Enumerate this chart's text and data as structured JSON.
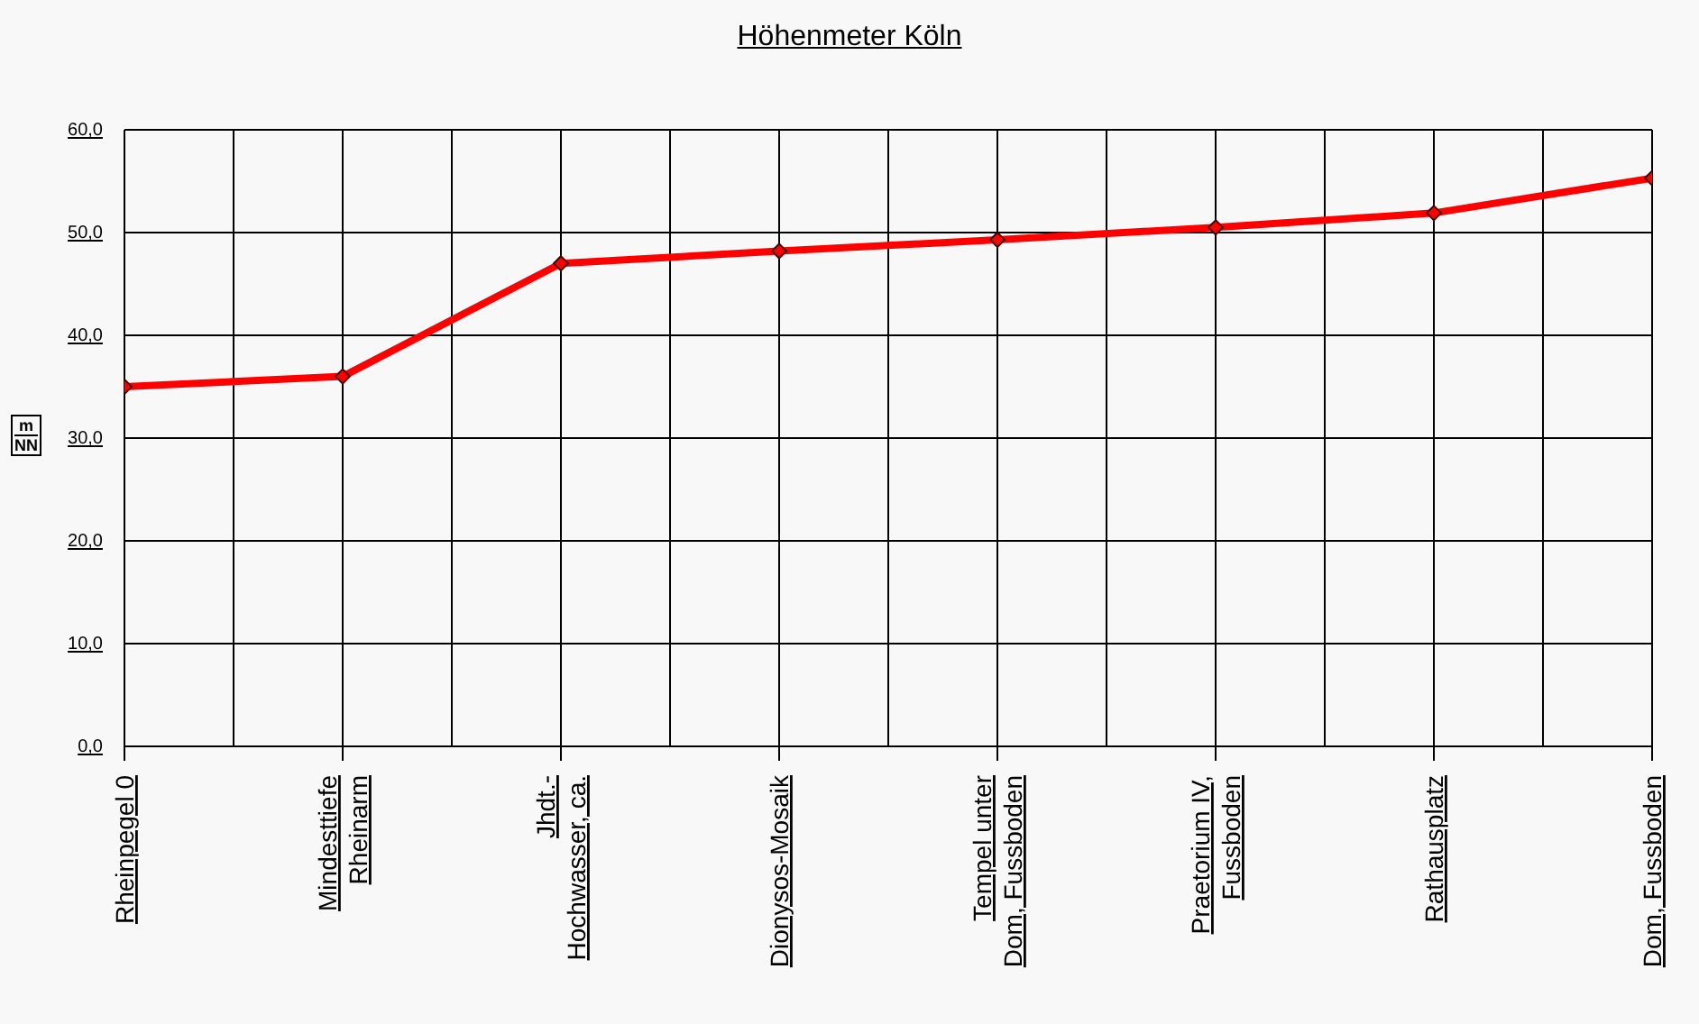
{
  "chart_data": {
    "type": "line",
    "title": "Höhenmeter Köln",
    "ylabel": "m NN",
    "categories": [
      "Rheinpegel 0",
      "Mindesttiefe\nRheinarm",
      "Jhdt.-\nHochwasser, ca.",
      "Dionysos-Mosaik",
      "Tempel unter\nDom, Fussboden",
      "Praetorium IV,\nFussboden",
      "Rathausplatz",
      "Dom, Fussboden"
    ],
    "series": [
      {
        "color": "#ff0000",
        "values": [
          35,
          36,
          47,
          48.2,
          49.3,
          50.5,
          51.9,
          55.3
        ]
      }
    ],
    "ylim": [
      0,
      60
    ],
    "yticks": [
      {
        "value": 0,
        "label": "0,0"
      },
      {
        "value": 10,
        "label": "10,0"
      },
      {
        "value": 20,
        "label": "20,0"
      },
      {
        "value": 30,
        "label": "30,0"
      },
      {
        "value": 40,
        "label": "40,0"
      },
      {
        "value": 50,
        "label": "50,0"
      },
      {
        "value": 60,
        "label": "60,0"
      }
    ],
    "grid": true,
    "marker": "diamond",
    "line_style": "solid"
  }
}
